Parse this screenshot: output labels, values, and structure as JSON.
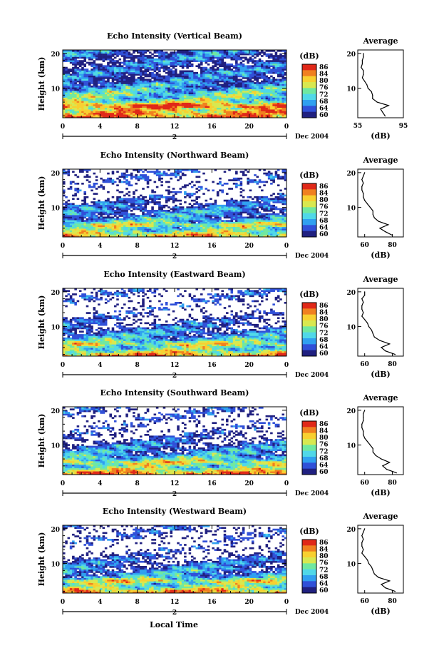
{
  "figure": {
    "xlabel": "Local Time",
    "date_label": "Dec 2004",
    "day_label": "2",
    "ylabel": "Height (km)",
    "x_ticks": [
      "0",
      "4",
      "8",
      "12",
      "16",
      "20",
      "0"
    ],
    "y_ticks": [
      "20",
      "10"
    ],
    "cb_unit": "(dB)",
    "cb_ticks": [
      "86",
      "84",
      "80",
      "76",
      "72",
      "68",
      "64",
      "60"
    ],
    "avg_title": "Average",
    "avg_xlabel": "(dB)",
    "avg_y_ticks": [
      "20",
      "10"
    ]
  },
  "chart_data": [
    {
      "type": "heatmap",
      "title": "Echo Intensity (Vertical Beam)",
      "xlabel": "Local Time",
      "ylabel": "Height (km)",
      "xlim": [
        0,
        24
      ],
      "ylim": [
        1.5,
        21
      ],
      "colorbar": {
        "label": "(dB)",
        "range": [
          60,
          88
        ]
      },
      "colormap": [
        "#202080",
        "#3050d8",
        "#30a0f0",
        "#50d8e8",
        "#70e8a0",
        "#d8e850",
        "#f8d030",
        "#f08020",
        "#e02818"
      ],
      "profile": {
        "title": "Average",
        "xlabel": "(dB)",
        "xlim": [
          55,
          95
        ],
        "x_ticks": [
          "55",
          "95"
        ],
        "heights": [
          2,
          3,
          4,
          5,
          6,
          7,
          8,
          9,
          10,
          11,
          12,
          13,
          14,
          15,
          16,
          17,
          18,
          19,
          20
        ],
        "values": [
          79,
          77,
          75,
          82,
          72,
          68,
          68,
          67,
          64,
          63,
          61,
          59,
          60,
          60,
          58,
          59,
          59,
          60,
          60
        ]
      }
    },
    {
      "type": "heatmap",
      "title": "Echo Intensity (Northward Beam)",
      "xlabel": "Local Time",
      "ylabel": "Height (km)",
      "xlim": [
        0,
        24
      ],
      "ylim": [
        1.5,
        21
      ],
      "colorbar": {
        "label": "(dB)",
        "range": [
          60,
          88
        ]
      },
      "colormap": [
        "#202080",
        "#3050d8",
        "#30a0f0",
        "#50d8e8",
        "#70e8a0",
        "#d8e850",
        "#f8d030",
        "#f08020",
        "#e02818"
      ],
      "profile": {
        "title": "Average",
        "xlabel": "(dB)",
        "xlim": [
          55,
          88
        ],
        "x_ticks": [
          "60",
          "80"
        ],
        "heights": [
          2,
          3,
          4,
          5,
          6,
          7,
          8,
          9,
          10,
          11,
          12,
          13,
          14,
          15,
          16,
          17,
          18,
          19,
          20
        ],
        "values": [
          80,
          75,
          71,
          77,
          70,
          67,
          66,
          66,
          64,
          62,
          60,
          59,
          59,
          58,
          58,
          59,
          58,
          59,
          60
        ]
      }
    },
    {
      "type": "heatmap",
      "title": "Echo Intensity (Eastward Beam)",
      "xlabel": "Local Time",
      "ylabel": "Height (km)",
      "xlim": [
        0,
        24
      ],
      "ylim": [
        1.5,
        21
      ],
      "colorbar": {
        "label": "(dB)",
        "range": [
          60,
          88
        ]
      },
      "colormap": [
        "#202080",
        "#3050d8",
        "#30a0f0",
        "#50d8e8",
        "#70e8a0",
        "#d8e850",
        "#f8d030",
        "#f08020",
        "#e02818"
      ],
      "profile": {
        "title": "Average",
        "xlabel": "(dB)",
        "xlim": [
          55,
          88
        ],
        "x_ticks": [
          "60",
          "80"
        ],
        "heights": [
          2,
          3,
          4,
          5,
          6,
          7,
          8,
          9,
          10,
          11,
          12,
          13,
          14,
          15,
          16,
          17,
          18,
          19,
          20
        ],
        "values": [
          82,
          75,
          72,
          78,
          71,
          67,
          66,
          65,
          63,
          62,
          60,
          58,
          59,
          58,
          58,
          59,
          58,
          60,
          60
        ]
      }
    },
    {
      "type": "heatmap",
      "title": "Echo Intensity (Southward Beam)",
      "xlabel": "Local Time",
      "ylabel": "Height (km)",
      "xlim": [
        0,
        24
      ],
      "ylim": [
        1.5,
        21
      ],
      "colorbar": {
        "label": "(dB)",
        "range": [
          60,
          88
        ]
      },
      "colormap": [
        "#202080",
        "#3050d8",
        "#30a0f0",
        "#50d8e8",
        "#70e8a0",
        "#d8e850",
        "#f8d030",
        "#f08020",
        "#e02818"
      ],
      "profile": {
        "title": "Average",
        "xlabel": "(dB)",
        "xlim": [
          55,
          88
        ],
        "x_ticks": [
          "60",
          "80"
        ],
        "heights": [
          2,
          3,
          4,
          5,
          6,
          7,
          8,
          9,
          10,
          11,
          12,
          13,
          14,
          15,
          16,
          17,
          18,
          19,
          20
        ],
        "values": [
          83,
          76,
          73,
          78,
          72,
          68,
          66,
          66,
          64,
          62,
          60,
          59,
          59,
          58,
          58,
          59,
          59,
          59,
          60
        ]
      }
    },
    {
      "type": "heatmap",
      "title": "Echo Intensity (Westward Beam)",
      "xlabel": "Local Time",
      "ylabel": "Height (km)",
      "xlim": [
        0,
        24
      ],
      "ylim": [
        1.5,
        21
      ],
      "colorbar": {
        "label": "(dB)",
        "range": [
          60,
          88
        ]
      },
      "colormap": [
        "#202080",
        "#3050d8",
        "#30a0f0",
        "#50d8e8",
        "#70e8a0",
        "#d8e850",
        "#f8d030",
        "#f08020",
        "#e02818"
      ],
      "profile": {
        "title": "Average",
        "xlabel": "(dB)",
        "xlim": [
          55,
          88
        ],
        "x_ticks": [
          "60",
          "80"
        ],
        "heights": [
          2,
          3,
          4,
          5,
          6,
          7,
          8,
          9,
          10,
          11,
          12,
          13,
          14,
          15,
          16,
          17,
          18,
          19,
          20
        ],
        "values": [
          82,
          75,
          72,
          78,
          70,
          67,
          66,
          65,
          63,
          62,
          60,
          58,
          59,
          58,
          58,
          59,
          58,
          59,
          60
        ]
      }
    }
  ]
}
